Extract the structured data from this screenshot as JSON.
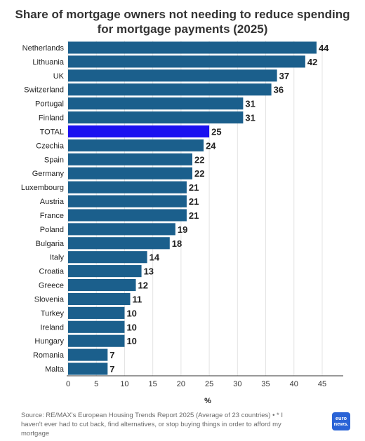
{
  "chart_data": {
    "type": "bar",
    "orientation": "horizontal",
    "title": "Share of mortgage owners not needing to reduce spending for mortgage payments (2025)",
    "xlabel": "%",
    "ylabel": "",
    "xlim": [
      0,
      45
    ],
    "xticks": [
      0,
      5,
      10,
      15,
      20,
      25,
      30,
      35,
      40,
      45
    ],
    "grid": true,
    "categories": [
      "Netherlands",
      "Lithuania",
      "UK",
      "Switzerland",
      "Portugal",
      "Finland",
      "TOTAL",
      "Czechia",
      "Spain",
      "Germany",
      "Luxembourg",
      "Austria",
      "France",
      "Poland",
      "Bulgaria",
      "Italy",
      "Croatia",
      "Greece",
      "Slovenia",
      "Turkey",
      "Ireland",
      "Hungary",
      "Romania",
      "Malta"
    ],
    "values": [
      44,
      42,
      37,
      36,
      31,
      31,
      25,
      24,
      22,
      22,
      21,
      21,
      21,
      19,
      18,
      14,
      13,
      12,
      11,
      10,
      10,
      10,
      7,
      7
    ],
    "highlight_category": "TOTAL",
    "colors": {
      "bar": "#1b5f8c",
      "highlight": "#1a10f0",
      "grid": "#e3e3e3",
      "axis": "#333333"
    }
  },
  "footer": {
    "source": "Source: RE/MAX's European Housing Trends Report 2025 (Average of 23 countries) • * I haven't ever had to cut back, find alternatives, or stop buying things in order to afford my mortgage",
    "logo_line1": "euro",
    "logo_line2": "news."
  }
}
